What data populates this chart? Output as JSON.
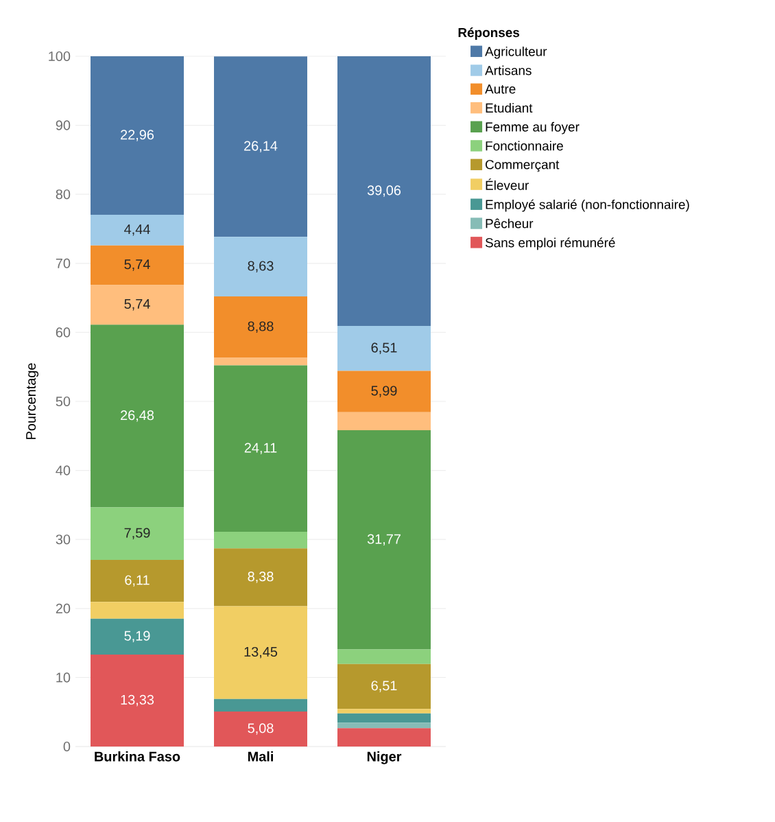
{
  "chart_data": {
    "type": "bar",
    "stacked": true,
    "ylabel": "Pourcentage",
    "legend_title": "Réponses",
    "legend": "right",
    "grid": "y",
    "categories": [
      "Burkina Faso",
      "Mali",
      "Niger"
    ],
    "ylim": [
      0,
      100
    ],
    "yticks": [
      0,
      10,
      20,
      30,
      40,
      50,
      60,
      70,
      80,
      90,
      100
    ],
    "series": [
      {
        "name": "Sans emploi rémunéré",
        "color": "#e15759",
        "values": [
          13.33,
          5.08,
          2.65
        ],
        "value_labels": [
          "13,33",
          "5,08",
          null
        ]
      },
      {
        "name": "Pêcheur",
        "color": "#86bcb6",
        "values": [
          null,
          null,
          0.8
        ],
        "value_labels": [
          null,
          null,
          null
        ]
      },
      {
        "name": "Employé salarié (non-fonctionnaire)",
        "color": "#499894",
        "values": [
          5.19,
          1.8,
          1.35
        ],
        "value_labels": [
          "5,19",
          null,
          null
        ]
      },
      {
        "name": "Éleveur",
        "color": "#f1ce63",
        "values": [
          2.42,
          13.45,
          0.65
        ],
        "value_labels": [
          null,
          "13,45",
          null
        ]
      },
      {
        "name": "Commerçant",
        "color": "#b6992d",
        "values": [
          6.11,
          8.38,
          6.51
        ],
        "value_labels": [
          "6,11",
          "8,38",
          "6,51"
        ]
      },
      {
        "name": "Fonctionnaire",
        "color": "#8cd17d",
        "values": [
          7.59,
          2.4,
          2.1
        ],
        "value_labels": [
          "7,59",
          null,
          null
        ]
      },
      {
        "name": "Femme au foyer",
        "color": "#59a14f",
        "values": [
          26.48,
          24.11,
          31.77
        ],
        "value_labels": [
          "26,48",
          "24,11",
          "31,77"
        ]
      },
      {
        "name": "Etudiant",
        "color": "#ffbe7d",
        "values": [
          5.74,
          1.1,
          2.6
        ],
        "value_labels": [
          "5,74",
          null,
          null
        ]
      },
      {
        "name": "Autre",
        "color": "#f28e2b",
        "values": [
          5.74,
          8.88,
          5.99
        ],
        "value_labels": [
          "5,74",
          "8,88",
          "5,99"
        ]
      },
      {
        "name": "Artisans",
        "color": "#a0cbe8",
        "values": [
          4.44,
          8.63,
          6.51
        ],
        "value_labels": [
          "4,44",
          "8,63",
          "6,51"
        ]
      },
      {
        "name": "Agriculteur",
        "color": "#4e79a7",
        "values": [
          22.96,
          26.14,
          39.06
        ],
        "value_labels": [
          "22,96",
          "26,14",
          "39,06"
        ]
      }
    ]
  }
}
